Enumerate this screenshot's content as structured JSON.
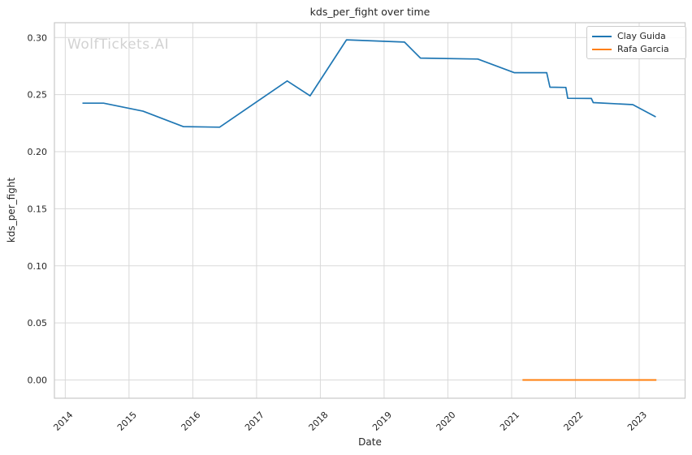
{
  "watermark": "WolfTickets.AI",
  "colors": {
    "background": "#ffffff",
    "grid": "#d9d9d9",
    "spine": "#c9c9c9",
    "text": "#262626",
    "watermark": "#d2d2d2",
    "legend_border": "#cccccc"
  },
  "chart_data": {
    "type": "line",
    "title": "kds_per_fight over time",
    "xlabel": "Date",
    "ylabel": "kds_per_fight",
    "xlim": [
      2013.83,
      2023.72
    ],
    "ylim": [
      -0.016,
      0.313
    ],
    "grid": true,
    "legend_position": "upper right",
    "x_ticks": [
      2014,
      2015,
      2016,
      2017,
      2018,
      2019,
      2020,
      2021,
      2022,
      2023
    ],
    "y_ticks": [
      {
        "value": 0.0,
        "label": "0.00"
      },
      {
        "value": 0.05,
        "label": "0.05"
      },
      {
        "value": 0.1,
        "label": "0.10"
      },
      {
        "value": 0.15,
        "label": "0.15"
      },
      {
        "value": 0.2,
        "label": "0.20"
      },
      {
        "value": 0.25,
        "label": "0.25"
      },
      {
        "value": 0.3,
        "label": "0.30"
      }
    ],
    "series": [
      {
        "name": "Clay Guida",
        "color": "#1f77b4",
        "line_width": 1.7,
        "points": [
          [
            2014.27,
            0.2425
          ],
          [
            2014.6,
            0.2425
          ],
          [
            2015.22,
            0.2355
          ],
          [
            2015.85,
            0.222
          ],
          [
            2016.42,
            0.2215
          ],
          [
            2017.48,
            0.262
          ],
          [
            2017.84,
            0.249
          ],
          [
            2018.41,
            0.298
          ],
          [
            2019.32,
            0.296
          ],
          [
            2019.57,
            0.282
          ],
          [
            2020.47,
            0.2812
          ],
          [
            2021.04,
            0.2692
          ],
          [
            2021.55,
            0.2692
          ],
          [
            2021.6,
            0.2565
          ],
          [
            2021.85,
            0.2563
          ],
          [
            2021.88,
            0.2468
          ],
          [
            2022.25,
            0.2466
          ],
          [
            2022.28,
            0.243
          ],
          [
            2022.9,
            0.2412
          ],
          [
            2023.26,
            0.2305
          ]
        ]
      },
      {
        "name": "Rafa Garcia",
        "color": "#ff7f0e",
        "line_width": 2,
        "points": [
          [
            2021.17,
            0.0
          ],
          [
            2023.27,
            0.0
          ]
        ]
      }
    ]
  }
}
